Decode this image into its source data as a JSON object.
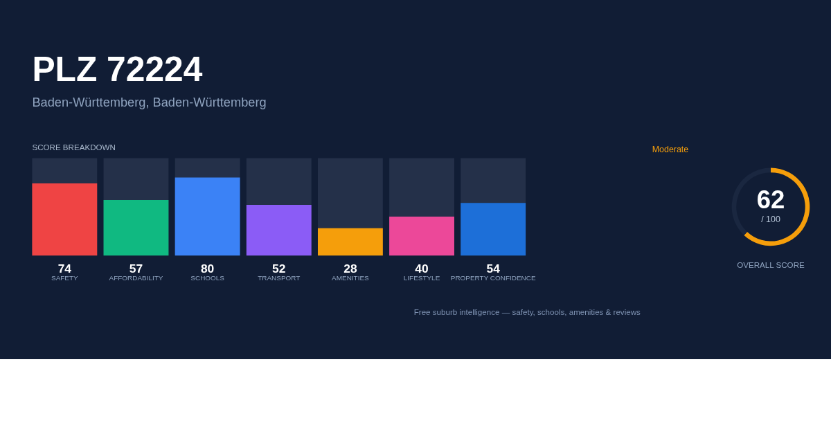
{
  "chart_data": [
    {
      "type": "bar",
      "title": "PLZ 72224",
      "subtitle": "Baden-Württemberg, Baden-Württemberg",
      "categories": [
        "SAFETY",
        "AFFORDABILITY",
        "SCHOOLS",
        "TRANSPORT",
        "AMENITIES",
        "LIFESTYLE",
        "PROPERTY CONFIDENCE"
      ],
      "values": [
        74,
        57,
        80,
        52,
        28,
        40,
        54
      ],
      "colors": [
        "#ef4444",
        "#10b981",
        "#3b82f6",
        "#8b5cf6",
        "#f59e0b",
        "#ec4899",
        "#1d6fd8"
      ],
      "ylim": [
        0,
        100
      ],
      "data_labels": true,
      "tick_labels": "x",
      "grid": false,
      "legend": false,
      "annotations": [
        "SCORE BREAKDOWN",
        "Free suburb intelligence — safety, schools, amenities & reviews"
      ]
    },
    {
      "type": "donut",
      "title": "OVERALL SCORE",
      "categories": [
        null,
        null
      ],
      "values": [
        62,
        38
      ],
      "colors": [
        "#f59e0b",
        "#1a2740"
      ],
      "legend": false,
      "annotations": [
        "Moderate",
        "62",
        "/ 100"
      ]
    }
  ]
}
